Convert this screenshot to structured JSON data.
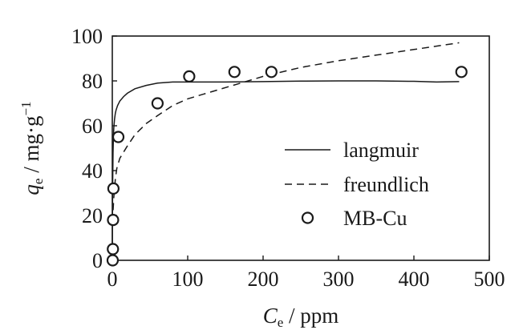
{
  "chart_data": {
    "type": "scatter",
    "xlabel": {
      "symbol": "C",
      "subscript": "e",
      "unit": " / ppm"
    },
    "ylabel": {
      "symbol": "q",
      "subscript": "e",
      "unit": " / mg·g",
      "superscript": "−1"
    },
    "xlim": [
      0,
      500
    ],
    "ylim": [
      0,
      100
    ],
    "x_ticks": [
      0,
      100,
      200,
      300,
      400,
      500
    ],
    "y_ticks": [
      0,
      20,
      40,
      60,
      80,
      100
    ],
    "grid": false,
    "legend_position": "right",
    "series": [
      {
        "name": "langmuir",
        "style": "solid-line",
        "x": [
          0,
          0.2,
          0.5,
          1,
          1.5,
          2,
          3,
          4,
          5,
          7,
          10,
          15,
          20,
          30,
          45,
          60,
          80,
          100,
          150,
          200,
          250,
          300,
          350,
          400,
          430,
          460
        ],
        "y": [
          0,
          18,
          34,
          48,
          55,
          59,
          63,
          65.5,
          67,
          69,
          71,
          73,
          74.5,
          76.5,
          78,
          79,
          79.5,
          79.5,
          79.5,
          79.7,
          79.9,
          80,
          80,
          79.8,
          79.5,
          79.7
        ]
      },
      {
        "name": "freundlich",
        "style": "dashed-line",
        "x": [
          0.5,
          1,
          2,
          4,
          6,
          10,
          20,
          30,
          45,
          60,
          80,
          100,
          130,
          160,
          200,
          250,
          300,
          350,
          400,
          460
        ],
        "y": [
          17,
          22,
          28,
          36,
          41,
          45.5,
          51,
          56,
          61,
          64.5,
          69,
          72,
          75,
          78,
          82,
          86,
          89,
          91.5,
          94,
          97
        ]
      },
      {
        "name": "MB-Cu",
        "style": "open-circle",
        "x": [
          0.5,
          0.8,
          1,
          1.5,
          8,
          60,
          102,
          162,
          211,
          463
        ],
        "y": [
          0,
          5,
          18,
          32,
          55,
          70,
          82,
          84,
          84,
          84
        ]
      }
    ]
  }
}
